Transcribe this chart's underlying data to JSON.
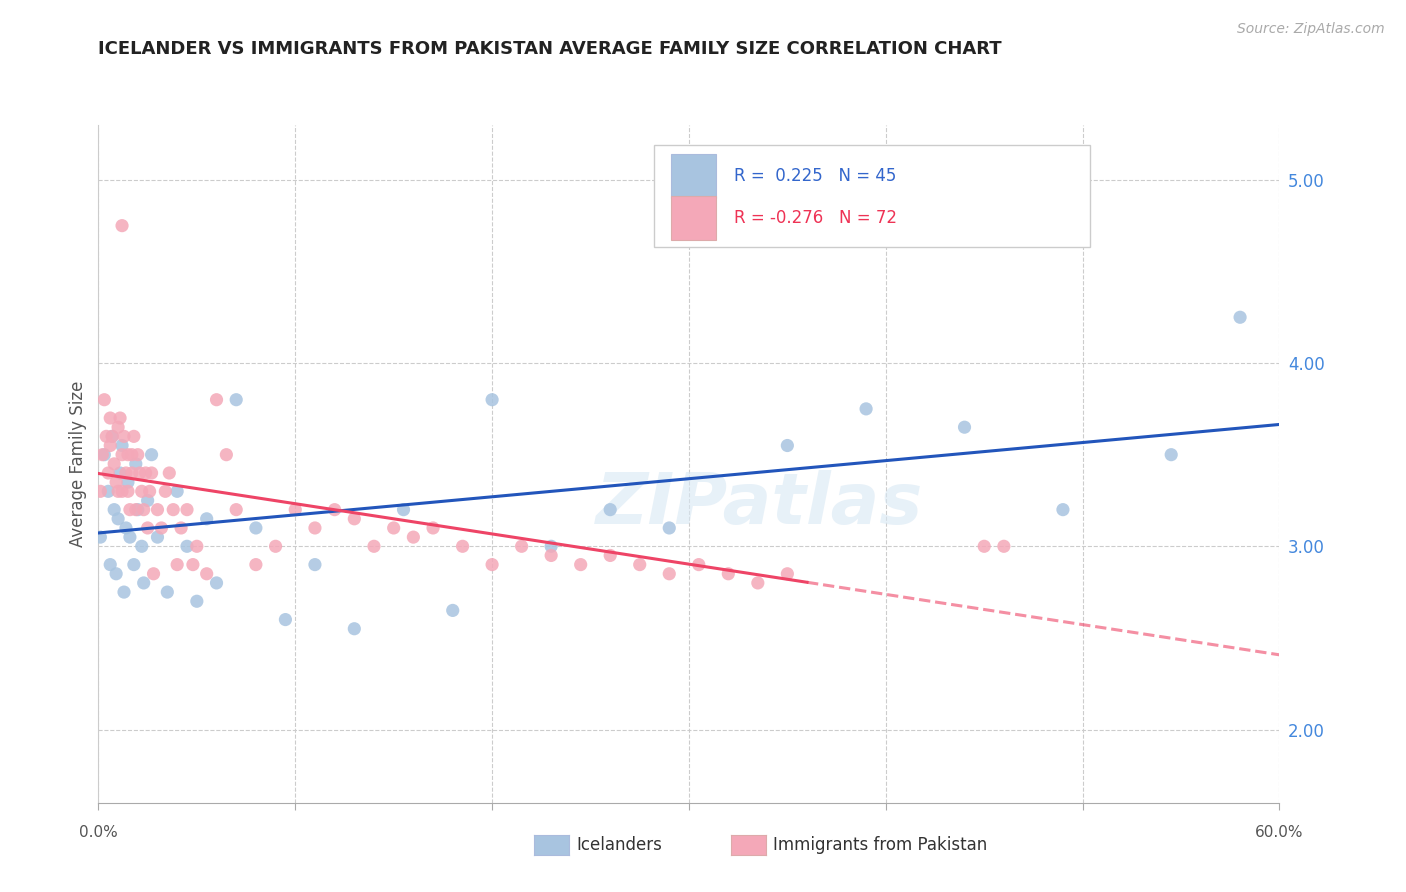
{
  "title": "ICELANDER VS IMMIGRANTS FROM PAKISTAN AVERAGE FAMILY SIZE CORRELATION CHART",
  "source": "Source: ZipAtlas.com",
  "ylabel": "Average Family Size",
  "yticks": [
    2.0,
    3.0,
    4.0,
    5.0
  ],
  "xlim": [
    0.0,
    0.6
  ],
  "ylim": [
    1.6,
    5.3
  ],
  "blue_color": "#A8C4E0",
  "pink_color": "#F4A8B8",
  "blue_line_color": "#2255BB",
  "pink_line_color": "#EE4466",
  "watermark": "ZIPatlas",
  "background_color": "#FFFFFF",
  "grid_color": "#CCCCCC",
  "blue_scatter_x": [
    0.001,
    0.003,
    0.005,
    0.006,
    0.007,
    0.008,
    0.009,
    0.01,
    0.011,
    0.012,
    0.013,
    0.014,
    0.015,
    0.016,
    0.018,
    0.019,
    0.02,
    0.022,
    0.023,
    0.025,
    0.027,
    0.03,
    0.035,
    0.04,
    0.045,
    0.05,
    0.055,
    0.06,
    0.07,
    0.08,
    0.095,
    0.11,
    0.13,
    0.155,
    0.18,
    0.2,
    0.23,
    0.26,
    0.29,
    0.35,
    0.39,
    0.44,
    0.49,
    0.545,
    0.58
  ],
  "blue_scatter_y": [
    3.05,
    3.5,
    3.3,
    2.9,
    3.6,
    3.2,
    2.85,
    3.15,
    3.4,
    3.55,
    2.75,
    3.1,
    3.35,
    3.05,
    2.9,
    3.45,
    3.2,
    3.0,
    2.8,
    3.25,
    3.5,
    3.05,
    2.75,
    3.3,
    3.0,
    2.7,
    3.15,
    2.8,
    3.8,
    3.1,
    2.6,
    2.9,
    2.55,
    3.2,
    2.65,
    3.8,
    3.0,
    3.2,
    3.1,
    3.55,
    3.75,
    3.65,
    3.2,
    3.5,
    4.25
  ],
  "pink_scatter_x": [
    0.001,
    0.002,
    0.003,
    0.004,
    0.005,
    0.006,
    0.006,
    0.007,
    0.008,
    0.009,
    0.01,
    0.01,
    0.011,
    0.012,
    0.012,
    0.013,
    0.014,
    0.015,
    0.015,
    0.016,
    0.017,
    0.017,
    0.018,
    0.019,
    0.02,
    0.021,
    0.022,
    0.023,
    0.024,
    0.025,
    0.026,
    0.027,
    0.028,
    0.03,
    0.032,
    0.034,
    0.036,
    0.038,
    0.04,
    0.042,
    0.045,
    0.048,
    0.05,
    0.055,
    0.06,
    0.065,
    0.07,
    0.08,
    0.09,
    0.1,
    0.11,
    0.12,
    0.13,
    0.14,
    0.15,
    0.16,
    0.17,
    0.185,
    0.2,
    0.215,
    0.23,
    0.245,
    0.26,
    0.275,
    0.29,
    0.305,
    0.32,
    0.335,
    0.35,
    0.012,
    0.45,
    0.46
  ],
  "pink_scatter_y": [
    3.3,
    3.5,
    3.8,
    3.6,
    3.4,
    3.7,
    3.55,
    3.6,
    3.45,
    3.35,
    3.3,
    3.65,
    3.7,
    3.5,
    3.3,
    3.6,
    3.4,
    3.5,
    3.3,
    3.2,
    3.5,
    3.4,
    3.6,
    3.2,
    3.5,
    3.4,
    3.3,
    3.2,
    3.4,
    3.1,
    3.3,
    3.4,
    2.85,
    3.2,
    3.1,
    3.3,
    3.4,
    3.2,
    2.9,
    3.1,
    3.2,
    2.9,
    3.0,
    2.85,
    3.8,
    3.5,
    3.2,
    2.9,
    3.0,
    3.2,
    3.1,
    3.2,
    3.15,
    3.0,
    3.1,
    3.05,
    3.1,
    3.0,
    2.9,
    3.0,
    2.95,
    2.9,
    2.95,
    2.9,
    2.85,
    2.9,
    2.85,
    2.8,
    2.85,
    4.75,
    3.0,
    3.0
  ]
}
